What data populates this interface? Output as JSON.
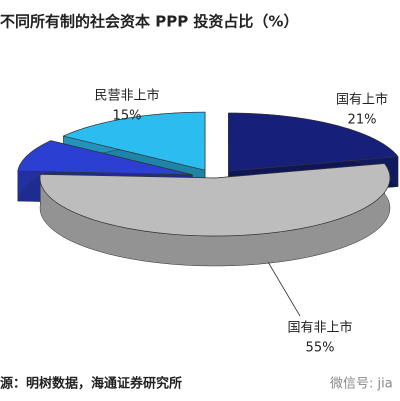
{
  "chart_data": {
    "type": "pie",
    "three_d": true,
    "title": "不同所有制的社会资本 PPP 投资占比（%）",
    "categories": [
      "国有上市",
      "国有非上市",
      null,
      "民营非上市"
    ],
    "values": [
      21,
      55,
      9,
      15
    ],
    "value_labels": [
      "21%",
      "55%",
      null,
      "15%"
    ],
    "colors": [
      "#16207a",
      "#bdbdbd",
      "#2b3fd0",
      "#2bbcf0"
    ]
  },
  "source": "源：明树数据，海通证券研究所",
  "watermark": "微信号: jia"
}
